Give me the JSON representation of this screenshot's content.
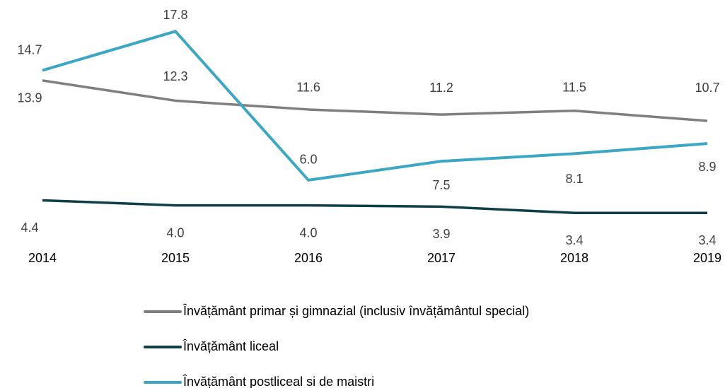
{
  "chart_data": {
    "type": "line",
    "categories": [
      "2014",
      "2015",
      "2016",
      "2017",
      "2018",
      "2019"
    ],
    "series": [
      {
        "name": "Învățământ primar și gimnazial (inclusiv învățământul special)",
        "color": "#7f7f7f",
        "values": [
          13.9,
          12.3,
          11.6,
          11.2,
          11.5,
          10.7
        ]
      },
      {
        "name": "Învățământ liceal",
        "color": "#0e3f47",
        "values": [
          4.4,
          4.0,
          4.0,
          3.9,
          3.4,
          3.4
        ],
        "value_labels": [
          "4.4",
          "4.0",
          "4.0",
          "3.9",
          "3.4",
          "3.4"
        ]
      },
      {
        "name": "Învățământ postliceal si de maistri",
        "color": "#3ba7c4",
        "values": [
          14.7,
          17.8,
          6.0,
          7.5,
          8.1,
          8.9
        ],
        "value_labels": [
          "14.7",
          "17.8",
          "6.0",
          "7.5",
          "8.1",
          "8.9"
        ]
      }
    ],
    "ylim": [
      0,
      20
    ],
    "legend": "bottom"
  }
}
